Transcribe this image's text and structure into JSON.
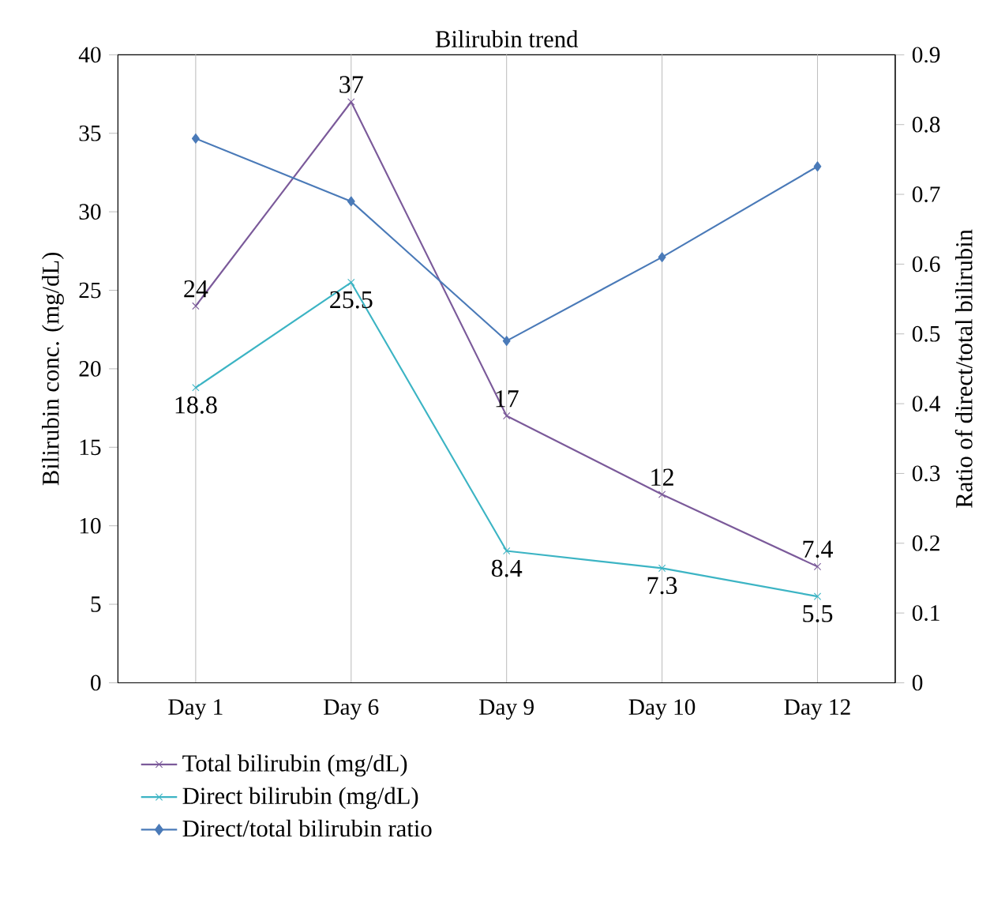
{
  "chart_data": {
    "type": "line",
    "title": "Bilirubin trend",
    "ylabel": "Bilirubin conc. (mg/dL)",
    "y2label": "Ratio of direct/total bilirubin",
    "categories": [
      "Day 1",
      "Day 6",
      "Day 9",
      "Day 10",
      "Day 12"
    ],
    "series": [
      {
        "name": "Total bilirubin (mg/dL)",
        "color": "#7b5a9a",
        "marker": "cross",
        "values": [
          24,
          37,
          17,
          12,
          7.4
        ],
        "value_labels": [
          "24",
          "37",
          "17",
          "12",
          "7.4"
        ]
      },
      {
        "name": "Direct bilirubin (mg/dL)",
        "color": "#3cb4c4",
        "marker": "cross",
        "values": [
          18.8,
          25.5,
          8.4,
          7.3,
          5.5
        ],
        "value_labels": [
          "18.8",
          "25.5",
          "8.4",
          "7.3",
          "5.5"
        ]
      },
      {
        "name": "Direct/total bilirubin ratio",
        "color": "#4a7ab8",
        "marker": "diamond",
        "axis": "y2",
        "values": [
          0.78,
          0.69,
          0.49,
          0.61,
          0.74
        ]
      }
    ],
    "ylim": [
      0,
      40
    ],
    "yticks": [
      0,
      5,
      10,
      15,
      20,
      25,
      30,
      35,
      40
    ],
    "y2lim": [
      0,
      0.9
    ],
    "y2ticks": [
      0,
      0.1,
      0.2,
      0.3,
      0.4,
      0.5,
      0.6,
      0.7,
      0.8,
      0.9
    ],
    "grid": "x",
    "legend": "bottom",
    "line_style": "solid"
  }
}
